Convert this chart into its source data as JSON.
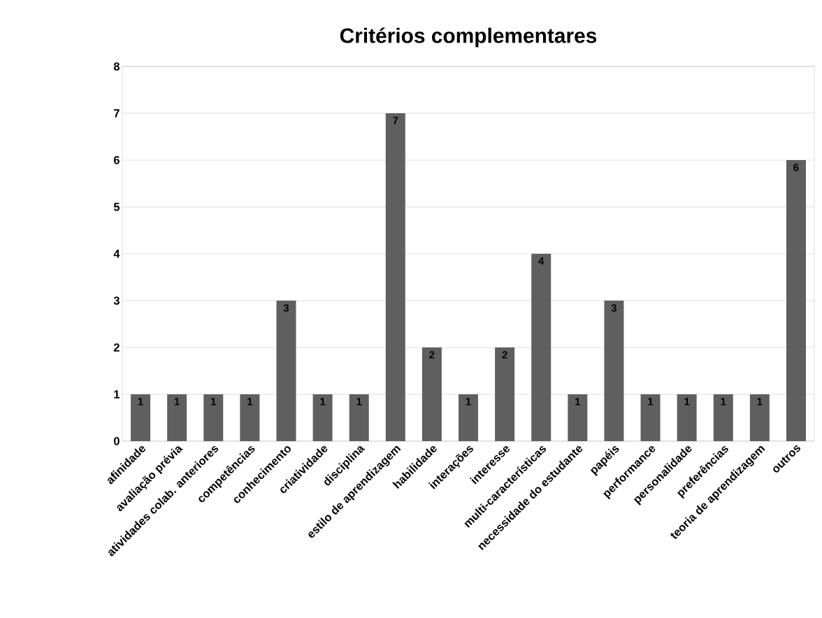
{
  "chart_data": {
    "type": "bar",
    "title": "Critérios complementares",
    "categories": [
      "afinidade",
      "avaliação prévia",
      "atividades colab. anteriores",
      "competências",
      "conhecimento",
      "criatividade",
      "disciplina",
      "estilo de aprendizagem",
      "habilidade",
      "interações",
      "interesse",
      "multi-características",
      "necessidade do estudante",
      "papéis",
      "performance",
      "personalidade",
      "preferências",
      "teoria de aprendizagem",
      "outros"
    ],
    "values": [
      1,
      1,
      1,
      1,
      3,
      1,
      1,
      7,
      2,
      1,
      2,
      4,
      1,
      3,
      1,
      1,
      1,
      1,
      6
    ],
    "color": "#5f5f5f",
    "ylim": [
      0,
      8
    ],
    "yticks": [
      0,
      1,
      2,
      3,
      4,
      5,
      6,
      7,
      8
    ],
    "grid": "y",
    "data_labels": true
  }
}
